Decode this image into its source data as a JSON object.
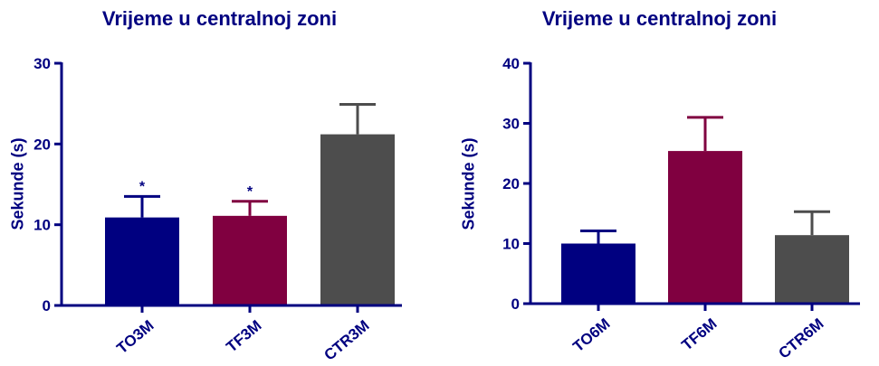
{
  "chart_data": [
    {
      "type": "bar",
      "title": "Vrijeme u centralnoj zoni",
      "xlabel": "",
      "ylabel": "Sekunde (s)",
      "ylim": [
        0,
        30
      ],
      "yticks": [
        0,
        10,
        20,
        30
      ],
      "categories": [
        "TO3M",
        "TF3M",
        "CTR3M"
      ],
      "values": [
        10.9,
        11.1,
        21.2
      ],
      "errors": [
        2.6,
        1.8,
        3.7
      ],
      "annotations": [
        "*",
        "*",
        ""
      ],
      "colors": [
        "#000080",
        "#800040",
        "#4d4d4d"
      ],
      "grid": false
    },
    {
      "type": "bar",
      "title": "Vrijeme u centralnoj zoni",
      "xlabel": "",
      "ylabel": "Sekunde (s)",
      "ylim": [
        0,
        40
      ],
      "yticks": [
        0,
        10,
        20,
        30,
        40
      ],
      "categories": [
        "TO6M",
        "TF6M",
        "CTR6M"
      ],
      "values": [
        10.0,
        25.4,
        11.4
      ],
      "errors": [
        2.1,
        5.6,
        3.9
      ],
      "annotations": [
        "",
        "",
        ""
      ],
      "colors": [
        "#000080",
        "#800040",
        "#4d4d4d"
      ],
      "grid": false
    }
  ]
}
